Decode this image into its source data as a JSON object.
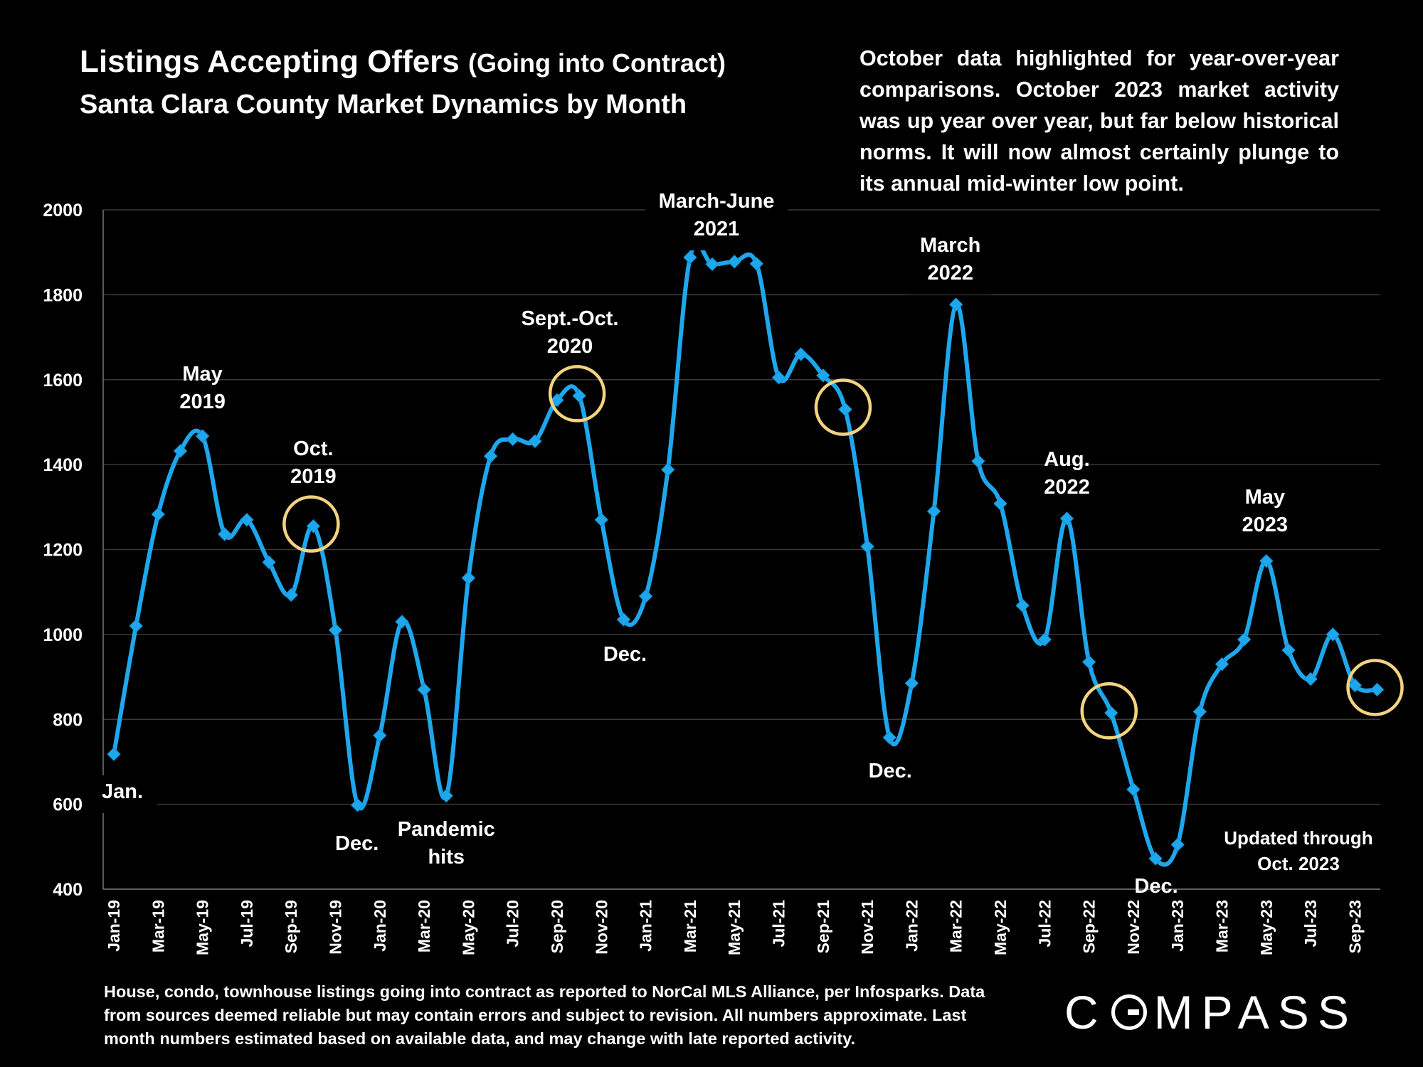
{
  "header": {
    "title_main": "Listings Accepting Offers",
    "title_paren": "(Going into Contract)",
    "subtitle": "Santa Clara County Market Dynamics by Month"
  },
  "note": "October data highlighted for year-over-year comparisons. October 2023 market activity was up year over year, but far below historical norms. It will now almost certainly plunge to its annual mid-winter low point.",
  "footer": "House, condo, townhouse listings going into contract as reported to NorCal MLS Alliance, per Infosparks. Data from sources deemed reliable but may contain errors and subject to revision. All numbers approximate. Last month numbers estimated based on available data, and may change with late reported activity.",
  "updated": [
    "Updated through",
    "Oct. 2023"
  ],
  "logo": {
    "before": "C",
    "after": "MPASS"
  },
  "colors": {
    "line": "#1ea7ec",
    "circle": "#f3d37f",
    "grid": "#3a3a3a",
    "background": "#000000"
  },
  "chart_data": {
    "type": "line",
    "title": "Listings Accepting Offers (Going into Contract)",
    "subtitle": "Santa Clara County Market Dynamics by Month",
    "ylim": [
      400,
      2000
    ],
    "yticks": [
      400,
      600,
      800,
      1000,
      1200,
      1400,
      1600,
      1800,
      2000
    ],
    "grid": true,
    "x": [
      "Jan-19",
      "Feb-19",
      "Mar-19",
      "Apr-19",
      "May-19",
      "Jun-19",
      "Jul-19",
      "Aug-19",
      "Sep-19",
      "Oct-19",
      "Nov-19",
      "Dec-19",
      "Jan-20",
      "Feb-20",
      "Mar-20",
      "Apr-20",
      "May-20",
      "Jun-20",
      "Jul-20",
      "Aug-20",
      "Sep-20",
      "Oct-20",
      "Nov-20",
      "Dec-20",
      "Jan-21",
      "Feb-21",
      "Mar-21",
      "Apr-21",
      "May-21",
      "Jun-21",
      "Jul-21",
      "Aug-21",
      "Sep-21",
      "Oct-21",
      "Nov-21",
      "Dec-21",
      "Jan-22",
      "Feb-22",
      "Mar-22",
      "Apr-22",
      "May-22",
      "Jun-22",
      "Jul-22",
      "Aug-22",
      "Sep-22",
      "Oct-22",
      "Nov-22",
      "Dec-22",
      "Jan-23",
      "Feb-23",
      "Mar-23",
      "Apr-23",
      "May-23",
      "Jun-23",
      "Jul-23",
      "Aug-23",
      "Sep-23",
      "Oct-23"
    ],
    "xtick_labels": [
      "Jan-19",
      "Mar-19",
      "May-19",
      "Jul-19",
      "Sep-19",
      "Nov-19",
      "Jan-20",
      "Mar-20",
      "May-20",
      "Jul-20",
      "Sep-20",
      "Nov-20",
      "Jan-21",
      "Mar-21",
      "May-21",
      "Jul-21",
      "Sep-21",
      "Nov-21",
      "Jan-22",
      "Mar-22",
      "May-22",
      "Jul-22",
      "Sep-22",
      "Nov-22",
      "Jan-23",
      "Mar-23",
      "May-23",
      "Jul-23",
      "Sep-23"
    ],
    "values": [
      718,
      1020,
      1283,
      1432,
      1467,
      1236,
      1270,
      1170,
      1093,
      1255,
      1010,
      598,
      762,
      1030,
      870,
      620,
      1133,
      1420,
      1460,
      1455,
      1552,
      1562,
      1270,
      1035,
      1090,
      1388,
      1888,
      1872,
      1878,
      1873,
      1605,
      1660,
      1610,
      1530,
      1207,
      757,
      885,
      1290,
      1777,
      1408,
      1308,
      1068,
      988,
      1273,
      935,
      815,
      635,
      472,
      505,
      818,
      930,
      988,
      1173,
      963,
      895,
      1000,
      880,
      870
    ],
    "highlighted": [
      "Oct-19",
      "Oct-20",
      "Oct-21",
      "Oct-22",
      "Oct-23"
    ],
    "annotations": [
      {
        "text": [
          "Jan."
        ],
        "month": "Jan-19"
      },
      {
        "text": [
          "May",
          "2019"
        ],
        "month": "May-19"
      },
      {
        "text": [
          "Oct.",
          "2019"
        ],
        "month": "Oct-19"
      },
      {
        "text": [
          "Dec."
        ],
        "month": "Dec-19"
      },
      {
        "text": [
          "Pandemic",
          "hits"
        ],
        "month": "Apr-20"
      },
      {
        "text": [
          "Sept.-Oct.",
          "2020"
        ],
        "month": "Sep-20"
      },
      {
        "text": [
          "Dec."
        ],
        "month": "Dec-20"
      },
      {
        "text": [
          "March-June",
          "2021"
        ],
        "month": "Apr-21"
      },
      {
        "text": [
          "Dec."
        ],
        "month": "Dec-21"
      },
      {
        "text": [
          "March",
          "2022"
        ],
        "month": "Mar-22"
      },
      {
        "text": [
          "Aug.",
          "2022"
        ],
        "month": "Aug-22"
      },
      {
        "text": [
          "Dec."
        ],
        "month": "Dec-22"
      },
      {
        "text": [
          "May",
          "2023"
        ],
        "month": "May-23"
      }
    ]
  }
}
